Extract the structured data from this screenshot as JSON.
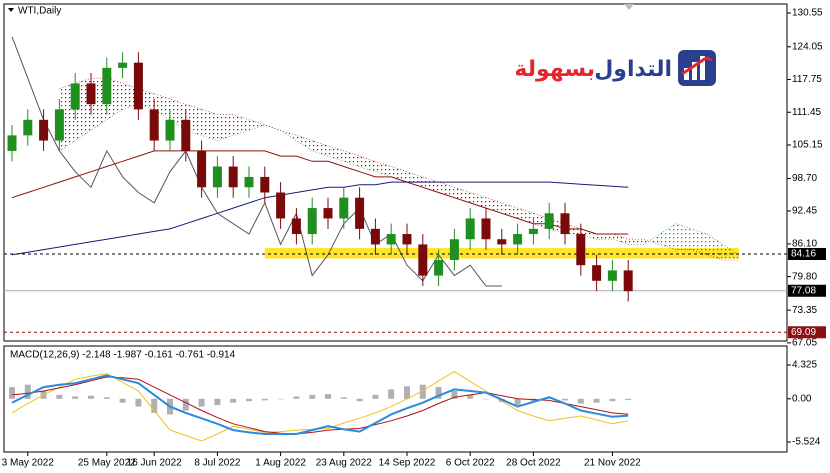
{
  "chart_data": {
    "type": "candlestick",
    "title": "WTI,Daily",
    "categories": [
      null,
      "3 May 2022",
      null,
      null,
      null,
      null,
      "25 May 2022",
      null,
      null,
      "16 Jun 2022",
      null,
      null,
      null,
      "8 Jul 2022",
      null,
      null,
      null,
      "1 Aug 2022",
      null,
      null,
      null,
      "23 Aug 2022",
      null,
      null,
      null,
      "14 Sep 2022",
      null,
      null,
      null,
      "6 Oct 2022",
      null,
      null,
      null,
      "28 Oct 2022",
      null,
      null,
      null,
      null,
      "21 Nov 2022",
      null,
      null,
      null,
      null,
      null,
      null,
      null,
      null
    ],
    "open": [
      104,
      107,
      110,
      106,
      112,
      117,
      113,
      120,
      121,
      112,
      106,
      110,
      104,
      97,
      101,
      97,
      99,
      96,
      91,
      88,
      93,
      91,
      95,
      89,
      86,
      88,
      86,
      80,
      83,
      87,
      91,
      87,
      86,
      88,
      89,
      92,
      88,
      82,
      79,
      81,
      null,
      null,
      null,
      null,
      null,
      null,
      null
    ],
    "high": [
      109,
      112,
      112,
      114,
      119,
      119,
      122,
      123,
      123,
      114,
      112,
      112,
      106,
      103,
      103,
      101,
      101,
      98,
      93,
      95,
      95,
      97,
      97,
      91,
      90,
      90,
      88,
      85,
      89,
      93,
      93,
      89,
      90,
      91,
      94,
      94,
      90,
      84,
      83,
      83,
      null,
      null,
      null,
      null,
      null,
      null,
      null
    ],
    "low": [
      102,
      105,
      104,
      104,
      110,
      111,
      111,
      118,
      110,
      104,
      104,
      102,
      95,
      95,
      95,
      95,
      94,
      89,
      86,
      86,
      89,
      89,
      87,
      84,
      84,
      84,
      78,
      78,
      81,
      85,
      85,
      84,
      84,
      86,
      87,
      86,
      80,
      77,
      77,
      75,
      null,
      null,
      null,
      null,
      null,
      null,
      null
    ],
    "close": [
      107,
      110,
      106,
      112,
      117,
      113,
      120,
      121,
      112,
      106,
      110,
      104,
      97,
      101,
      97,
      99,
      96,
      91,
      88,
      93,
      91,
      95,
      89,
      86,
      88,
      86,
      80,
      83,
      87,
      91,
      87,
      86,
      88,
      89,
      92,
      88,
      82,
      79,
      81,
      77,
      null,
      null,
      null,
      null,
      null,
      null,
      null
    ],
    "up_color": "#1f8f1f",
    "down_color": "#7a0a0a",
    "overlays": [
      {
        "color": "#8b1010",
        "values": [
          95,
          96,
          97,
          98,
          99,
          100,
          101,
          102,
          103,
          104,
          104,
          104,
          104,
          104,
          104,
          104,
          104,
          103,
          103,
          102,
          102,
          101,
          100,
          99,
          99,
          98,
          97,
          96,
          95,
          94,
          93,
          92,
          91,
          90,
          90,
          89,
          89,
          88,
          88,
          88,
          null,
          null,
          null,
          null,
          null,
          null,
          null
        ]
      },
      {
        "color": "#1a1a7a",
        "values": [
          84,
          84.5,
          85,
          85.5,
          86,
          86.5,
          87,
          87.5,
          88,
          88.5,
          89,
          90,
          91,
          92,
          93,
          94,
          95,
          95.5,
          96,
          96.5,
          97,
          97,
          97.5,
          97.5,
          98,
          98,
          98,
          98,
          98,
          98,
          98,
          98,
          98,
          98,
          98,
          97.8,
          97.6,
          97.4,
          97.2,
          97,
          null,
          null,
          null,
          null,
          null,
          null,
          null
        ]
      },
      {
        "color": "#555555",
        "values": [
          126,
          118,
          110,
          104,
          100,
          97,
          104,
          99,
          96,
          94,
          100,
          104,
          97,
          92,
          90,
          88,
          94,
          86,
          92,
          80,
          84,
          90,
          93,
          86,
          88,
          82,
          79,
          84,
          80,
          82,
          78,
          78,
          null,
          null,
          null,
          null,
          null,
          null,
          null,
          null,
          null,
          null,
          null,
          null,
          null,
          null,
          null
        ]
      }
    ],
    "cloud": {
      "bull_color": "#1f8f1f",
      "bear_color": "#8b1010",
      "span_a": [
        null,
        null,
        null,
        104,
        106,
        108,
        110,
        112,
        113,
        112,
        110,
        108,
        107,
        106,
        107,
        108,
        109,
        108,
        106,
        104,
        103,
        102,
        101,
        100,
        99,
        98,
        97,
        96,
        95,
        94,
        93,
        92,
        91,
        90,
        89,
        88,
        88,
        87,
        87,
        86,
        86,
        88,
        90,
        89,
        88,
        86,
        84
      ],
      "span_b": [
        null,
        null,
        null,
        116,
        117,
        118,
        118,
        117,
        116,
        115,
        114,
        113,
        112,
        111,
        111,
        110,
        109,
        108,
        107,
        106,
        105,
        104,
        103,
        102,
        101,
        100,
        99,
        98,
        97,
        96,
        95,
        94,
        93,
        92,
        91,
        90,
        89,
        88,
        88,
        87,
        87,
        86,
        85,
        85,
        84,
        83,
        83
      ]
    },
    "levels": [
      {
        "value": 84.16,
        "color": "#000000",
        "style": "dashed"
      },
      {
        "value": 77.08,
        "color": "#000000",
        "style": "solid"
      },
      {
        "value": 69.09,
        "color": "#8b1010",
        "style": "dashed"
      }
    ],
    "zone": {
      "low": 83.3,
      "high": 85.3,
      "start": 16,
      "end": 46,
      "color": "#ffe000"
    },
    "ylim": [
      67.6,
      132.1
    ],
    "yticks": [
      130.55,
      124.05,
      117.75,
      111.45,
      105.15,
      {
        "value": 98.7,
        "label": "98.70"
      },
      92.45,
      {
        "value": 86.1,
        "label": "86.10"
      },
      {
        "value": 79.8,
        "label": "79.80"
      },
      73.35,
      67.05
    ],
    "macd": {
      "title": "MACD(12,26,9) -2.148 -1.987 -0.161 -0.761 -0.914",
      "ylim": [
        -6.55,
        6.63
      ],
      "yticks": [
        4.325,
        {
          "value": 0,
          "label": "0.00"
        },
        -5.524
      ],
      "histogram": {
        "color": "#b0b0b0",
        "values": [
          1.5,
          1.8,
          1.0,
          0.5,
          0.3,
          0.4,
          0.2,
          -0.5,
          -1.0,
          -1.8,
          -2.0,
          -1.5,
          -1.0,
          -0.8,
          -0.5,
          -0.3,
          -0.2,
          0,
          0.3,
          0.5,
          0.6,
          0.2,
          -0.3,
          0.5,
          1.2,
          1.6,
          1.8,
          1.5,
          1.0,
          0.5,
          0,
          -0.4,
          -0.8,
          -0.3,
          0.2,
          -0.2,
          -0.6,
          -0.5,
          -0.3,
          -0.161,
          null,
          null,
          null,
          null,
          null,
          null,
          null
        ]
      },
      "lines": [
        {
          "color": "#f0c020",
          "values": [
            -1.8,
            -0.6,
            0.5,
            1.5,
            2.5,
            2.9,
            3.2,
            2.1,
            1.0,
            -1.5,
            -4.0,
            -4.7,
            -5.4,
            -4.5,
            -3.5,
            -3.9,
            -4.3,
            -4.2,
            -4.0,
            -3.9,
            -3.8,
            -3.1,
            -2.5,
            -1.8,
            -1.0,
            0,
            1.0,
            2.3,
            3.5,
            2.2,
            1.0,
            -0.3,
            -1.5,
            -2.2,
            -2.8,
            -2.5,
            -2.2,
            -2.7,
            -3.2,
            -2.8,
            null,
            null,
            null,
            null,
            null,
            null,
            null
          ]
        },
        {
          "color": "#b01010",
          "values": [
            0.5,
            0.7,
            1.0,
            1.4,
            1.8,
            2.3,
            2.8,
            2.7,
            2.5,
            1.5,
            0.5,
            -0.5,
            -1.5,
            -2.4,
            -3.2,
            -3.7,
            -4.2,
            -4.4,
            -4.5,
            -4.3,
            -4.0,
            -3.9,
            -3.8,
            -3.3,
            -2.8,
            -2.2,
            -1.5,
            -0.6,
            0.2,
            0.5,
            0.8,
            0.4,
            0,
            -0.1,
            -0.2,
            -0.6,
            -1.0,
            -1.4,
            -1.8,
            -1.987,
            null,
            null,
            null,
            null,
            null,
            null,
            null
          ]
        },
        {
          "color": "#2a8ae0",
          "values": [
            -0.5,
            0.5,
            1.5,
            1.8,
            2.0,
            2.5,
            3.0,
            2.5,
            2.0,
            0.5,
            -1.0,
            -1.8,
            -2.5,
            -3.2,
            -4.0,
            -4.3,
            -4.5,
            -4.5,
            -4.5,
            -4.0,
            -3.5,
            -3.9,
            -4.2,
            -3.1,
            -2.0,
            -1.2,
            -0.5,
            0.4,
            1.2,
            1.0,
            0.8,
            -0.1,
            -1.0,
            -0.4,
            0.2,
            -0.6,
            -1.5,
            -1.9,
            -2.3,
            -2.148,
            null,
            null,
            null,
            null,
            null,
            null,
            null
          ]
        }
      ]
    }
  },
  "logo": {
    "word1": "التداول",
    "word2": "بسهولة"
  }
}
